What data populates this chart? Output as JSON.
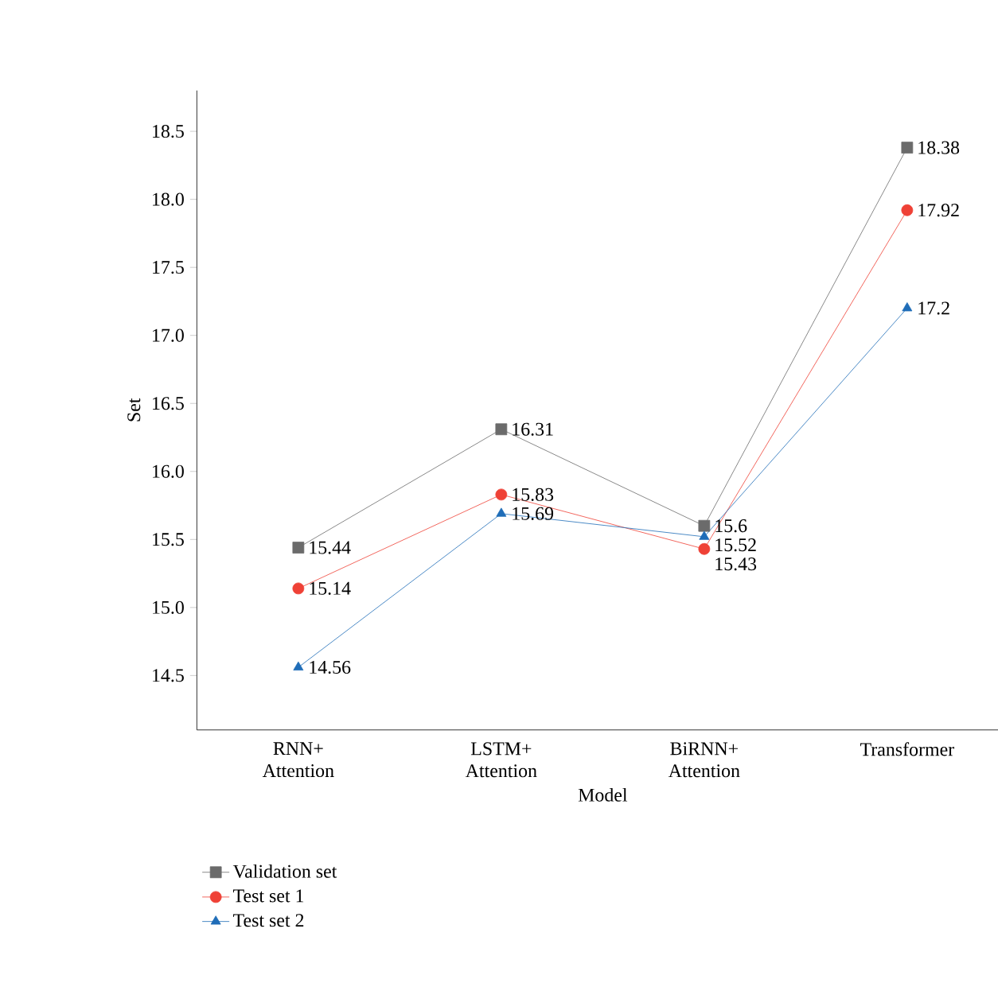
{
  "chart_data": {
    "type": "line",
    "xlabel": "Model",
    "ylabel": "Set",
    "categories": [
      "RNN+ Attention",
      "LSTM+ Attention",
      "BiRNN+ Attention",
      "Transformer"
    ],
    "series": [
      {
        "name": "Validation set",
        "color": "#6b6b6b",
        "marker": "square",
        "values": [
          15.44,
          16.31,
          15.6,
          18.38
        ]
      },
      {
        "name": "Test set 1",
        "color": "#ef4136",
        "marker": "circle",
        "values": [
          15.14,
          15.83,
          15.43,
          17.92
        ]
      },
      {
        "name": "Test set 2",
        "color": "#1f6db8",
        "marker": "triangle",
        "values": [
          14.56,
          15.69,
          15.52,
          17.2
        ]
      }
    ],
    "ylim": [
      14.1,
      18.8
    ],
    "yticks": [
      14.5,
      {
        "value": 15,
        "label": "15.0"
      },
      15.5,
      {
        "value": 16,
        "label": "16.0"
      },
      16.5,
      {
        "value": 17,
        "label": "17.0"
      },
      17.5,
      {
        "value": 18,
        "label": "18.0"
      },
      18.5
    ],
    "data_labels": true,
    "legend": "bottom",
    "grid": false,
    "line_style": "solid"
  }
}
